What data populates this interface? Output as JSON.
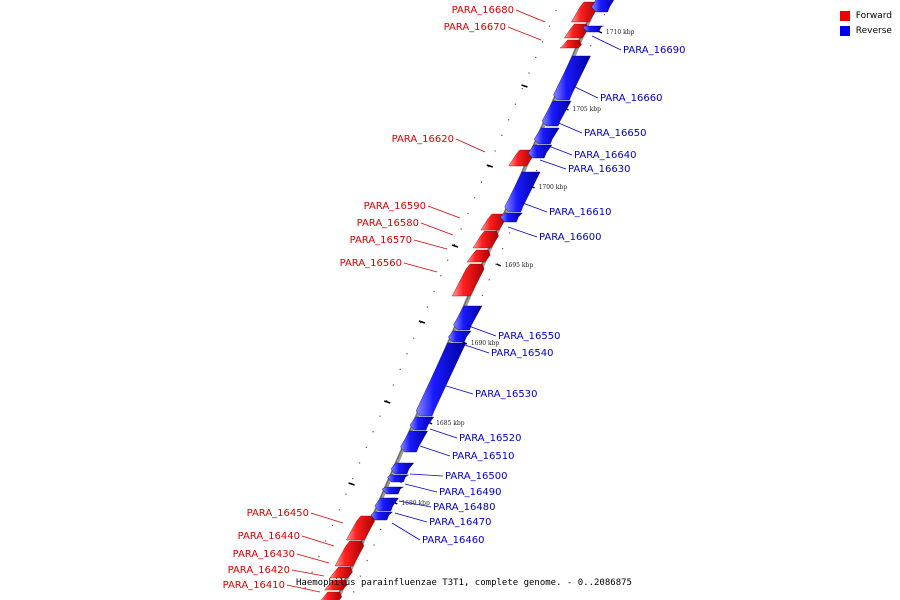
{
  "legend": {
    "forward_label": "Forward",
    "forward_color": "#ee0000",
    "reverse_label": "Reverse",
    "reverse_color": "#0000ee"
  },
  "caption": "Haemophilus parainfluenzae T3T1, complete genome. - 0..2086875",
  "kbp_marks": [
    "1710 kbp",
    "1705 kbp",
    "1700 kbp",
    "1695 kbp",
    "1690 kbp",
    "1685 kbp",
    "1680 kbp"
  ],
  "forward_genes": [
    "PARA_16680",
    "PARA_16670",
    "PARA_16620",
    "PARA_16590",
    "PARA_16580",
    "PARA_16570",
    "PARA_16560",
    "PARA_16450",
    "PARA_16440",
    "PARA_16430",
    "PARA_16420",
    "PARA_16410"
  ],
  "reverse_genes": [
    "PARA_16690",
    "PARA_16660",
    "PARA_16650",
    "PARA_16640",
    "PARA_16630",
    "PARA_16610",
    "PARA_16600",
    "PARA_16550",
    "PARA_16540",
    "PARA_16530",
    "PARA_16520",
    "PARA_16510",
    "PARA_16500",
    "PARA_16490",
    "PARA_16480",
    "PARA_16470",
    "PARA_16460"
  ]
}
